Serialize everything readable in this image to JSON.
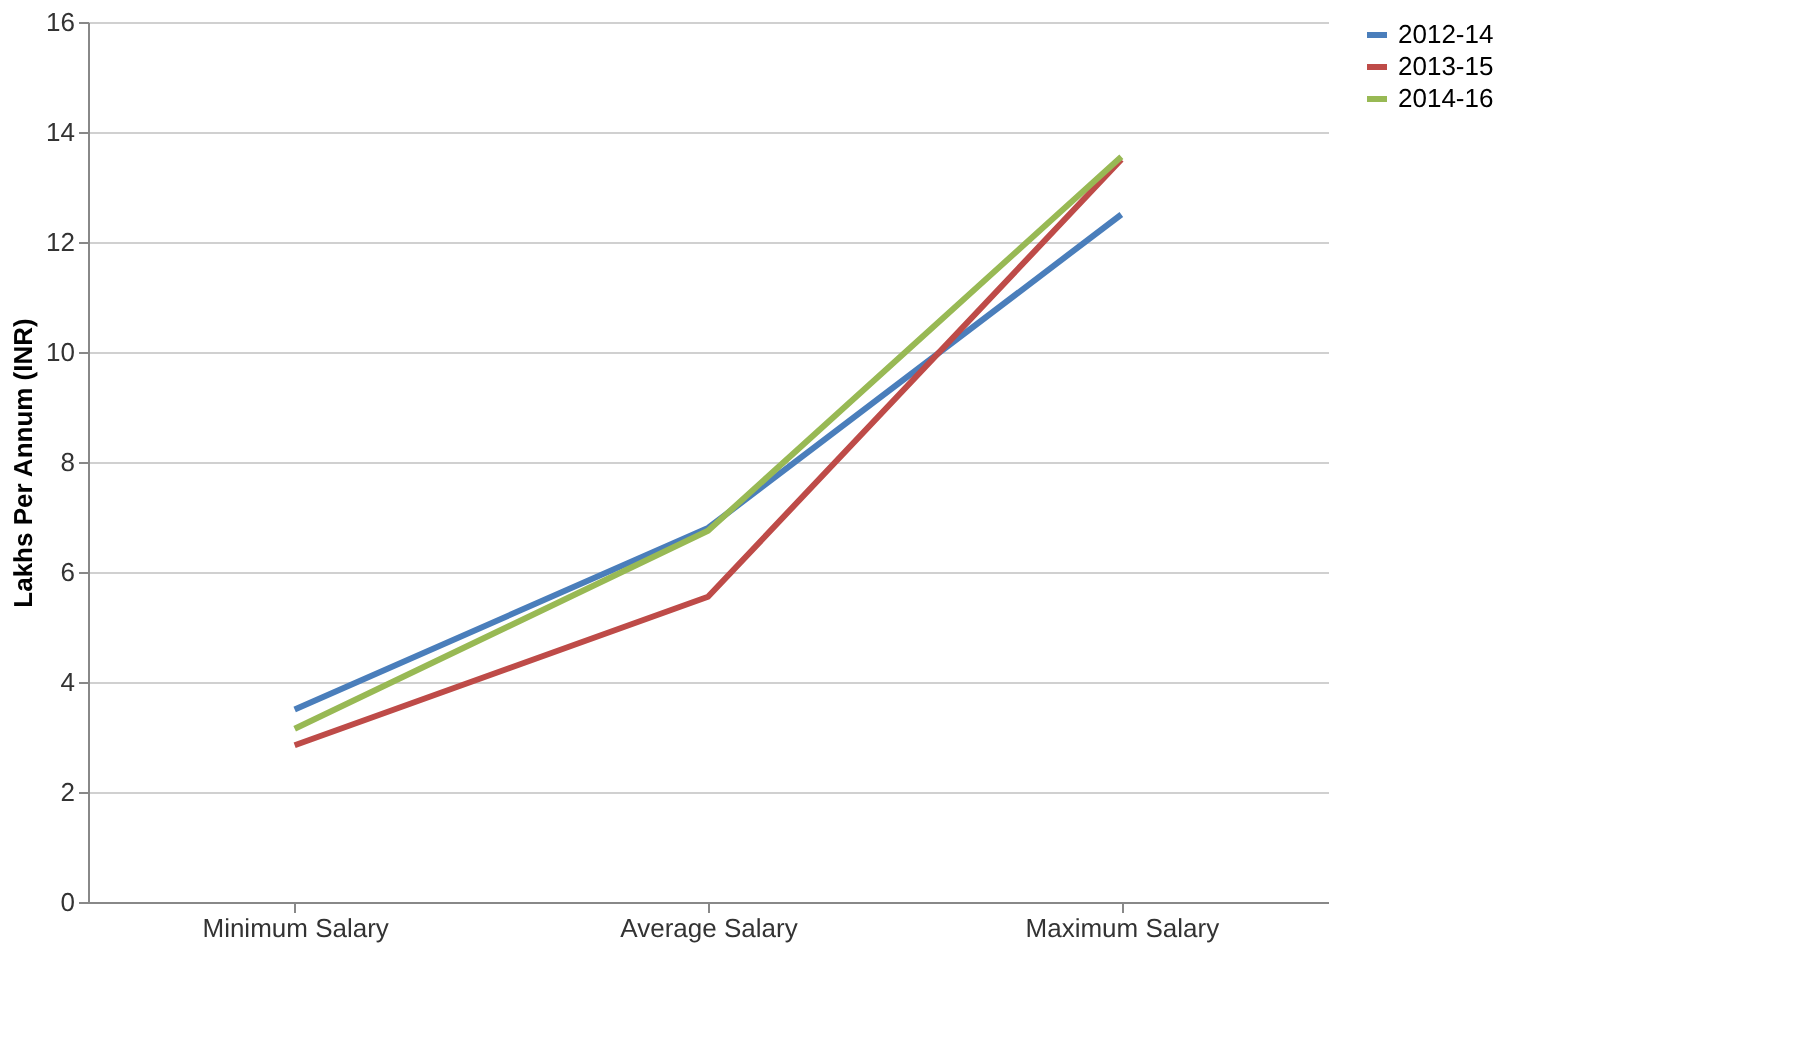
{
  "chart_data": {
    "type": "line",
    "ylabel": "Lakhs Per Annum (INR)",
    "categories": [
      "Minimum Salary",
      "Average Salary",
      "Maximum Salary"
    ],
    "series": [
      {
        "name": "2012-14",
        "color": "#4a7ebb",
        "values": [
          3.5,
          6.8,
          12.5
        ]
      },
      {
        "name": "2013-15",
        "color": "#be4b48",
        "values": [
          2.85,
          5.55,
          13.5
        ]
      },
      {
        "name": "2014-16",
        "color": "#98b954",
        "values": [
          3.15,
          6.75,
          13.55
        ]
      }
    ],
    "ylim": [
      0,
      16
    ],
    "yticks": [
      0,
      2,
      4,
      6,
      8,
      10,
      12,
      14,
      16
    ],
    "grid": "y",
    "legend": "right",
    "marker": "none",
    "line_style": "solid"
  }
}
